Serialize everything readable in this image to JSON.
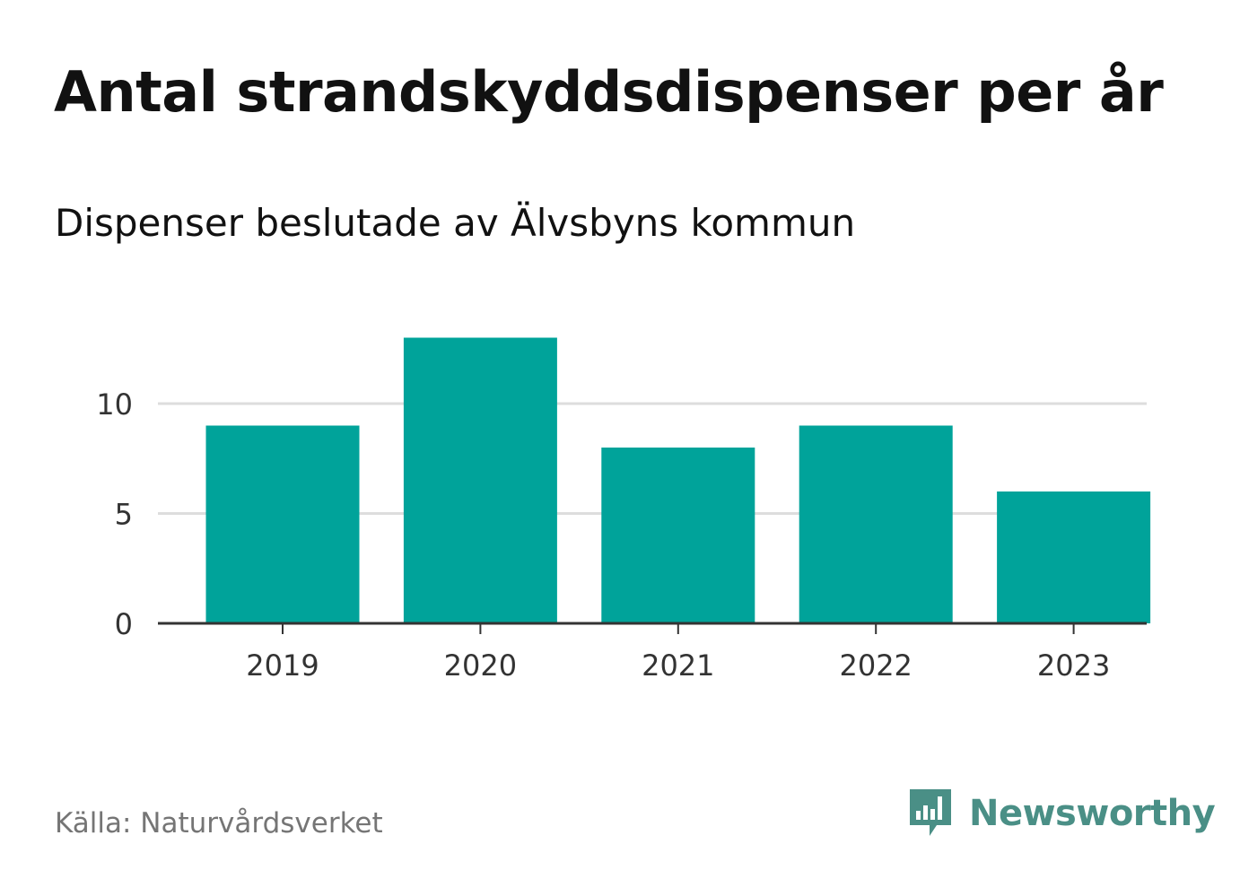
{
  "chart_data": {
    "type": "bar",
    "title": "Antal strandskyddsdispenser per år",
    "subtitle": "Dispenser beslutade av Älvsbyns kommun",
    "categories": [
      "2019",
      "2020",
      "2021",
      "2022",
      "2023"
    ],
    "values": [
      9,
      13,
      8,
      9,
      6
    ],
    "xlabel": "",
    "ylabel": "",
    "ylim": [
      0,
      13
    ],
    "yticks": [
      0,
      5,
      10
    ],
    "ytick_labels": [
      "0",
      "5",
      "10"
    ],
    "grid": true,
    "legend": "none"
  },
  "colors": {
    "bar": "#00a39a",
    "grid": "#dddddd",
    "axis": "#333333",
    "source_text": "#757575",
    "brand": "#4a8f86"
  },
  "footer": {
    "source": "Källa: Naturvårdsverket",
    "brand_name": "Newsworthy",
    "brand_icon": "newsworthy-logo-icon"
  }
}
